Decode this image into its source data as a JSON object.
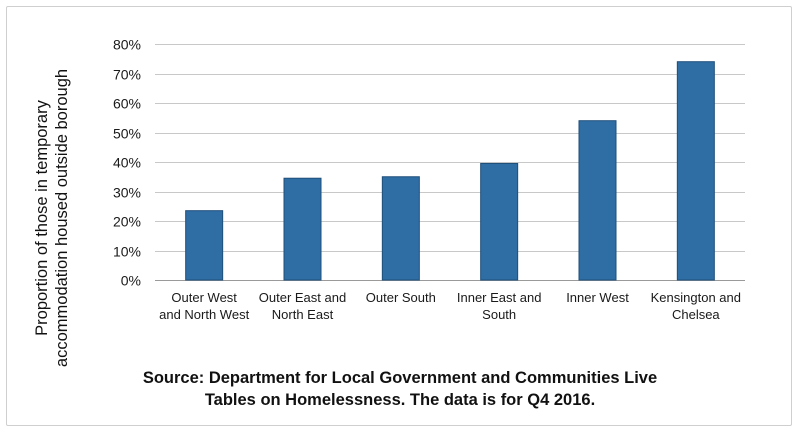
{
  "chart_data": {
    "type": "bar",
    "categories": [
      [
        "Outer West",
        "and North West"
      ],
      [
        "Outer East and",
        "North East"
      ],
      [
        "Outer South"
      ],
      [
        "Inner East and",
        "South"
      ],
      [
        "Inner West"
      ],
      [
        "Kensington and",
        "Chelsea"
      ]
    ],
    "values": [
      23.5,
      34.5,
      35,
      39.5,
      54,
      74
    ],
    "ylabel": [
      "Proportion of those in temporary",
      "accommodation housed outside borough"
    ],
    "ylim": [
      0,
      80
    ],
    "yticks": [
      0,
      10,
      20,
      30,
      40,
      50,
      60,
      70,
      80
    ],
    "ytick_labels": [
      "0%",
      "10%",
      "20%",
      "30%",
      "40%",
      "50%",
      "60%",
      "70%",
      "80%"
    ],
    "grid": true,
    "bar_color": "#2f6ea5",
    "bar_edge_color": "#1f4f7a",
    "grid_color": "#c8c8c8"
  },
  "caption": {
    "line1": "Source: Department for Local Government and Communities Live",
    "line2": "Tables on Homelessness. The data is for Q4 2016."
  }
}
